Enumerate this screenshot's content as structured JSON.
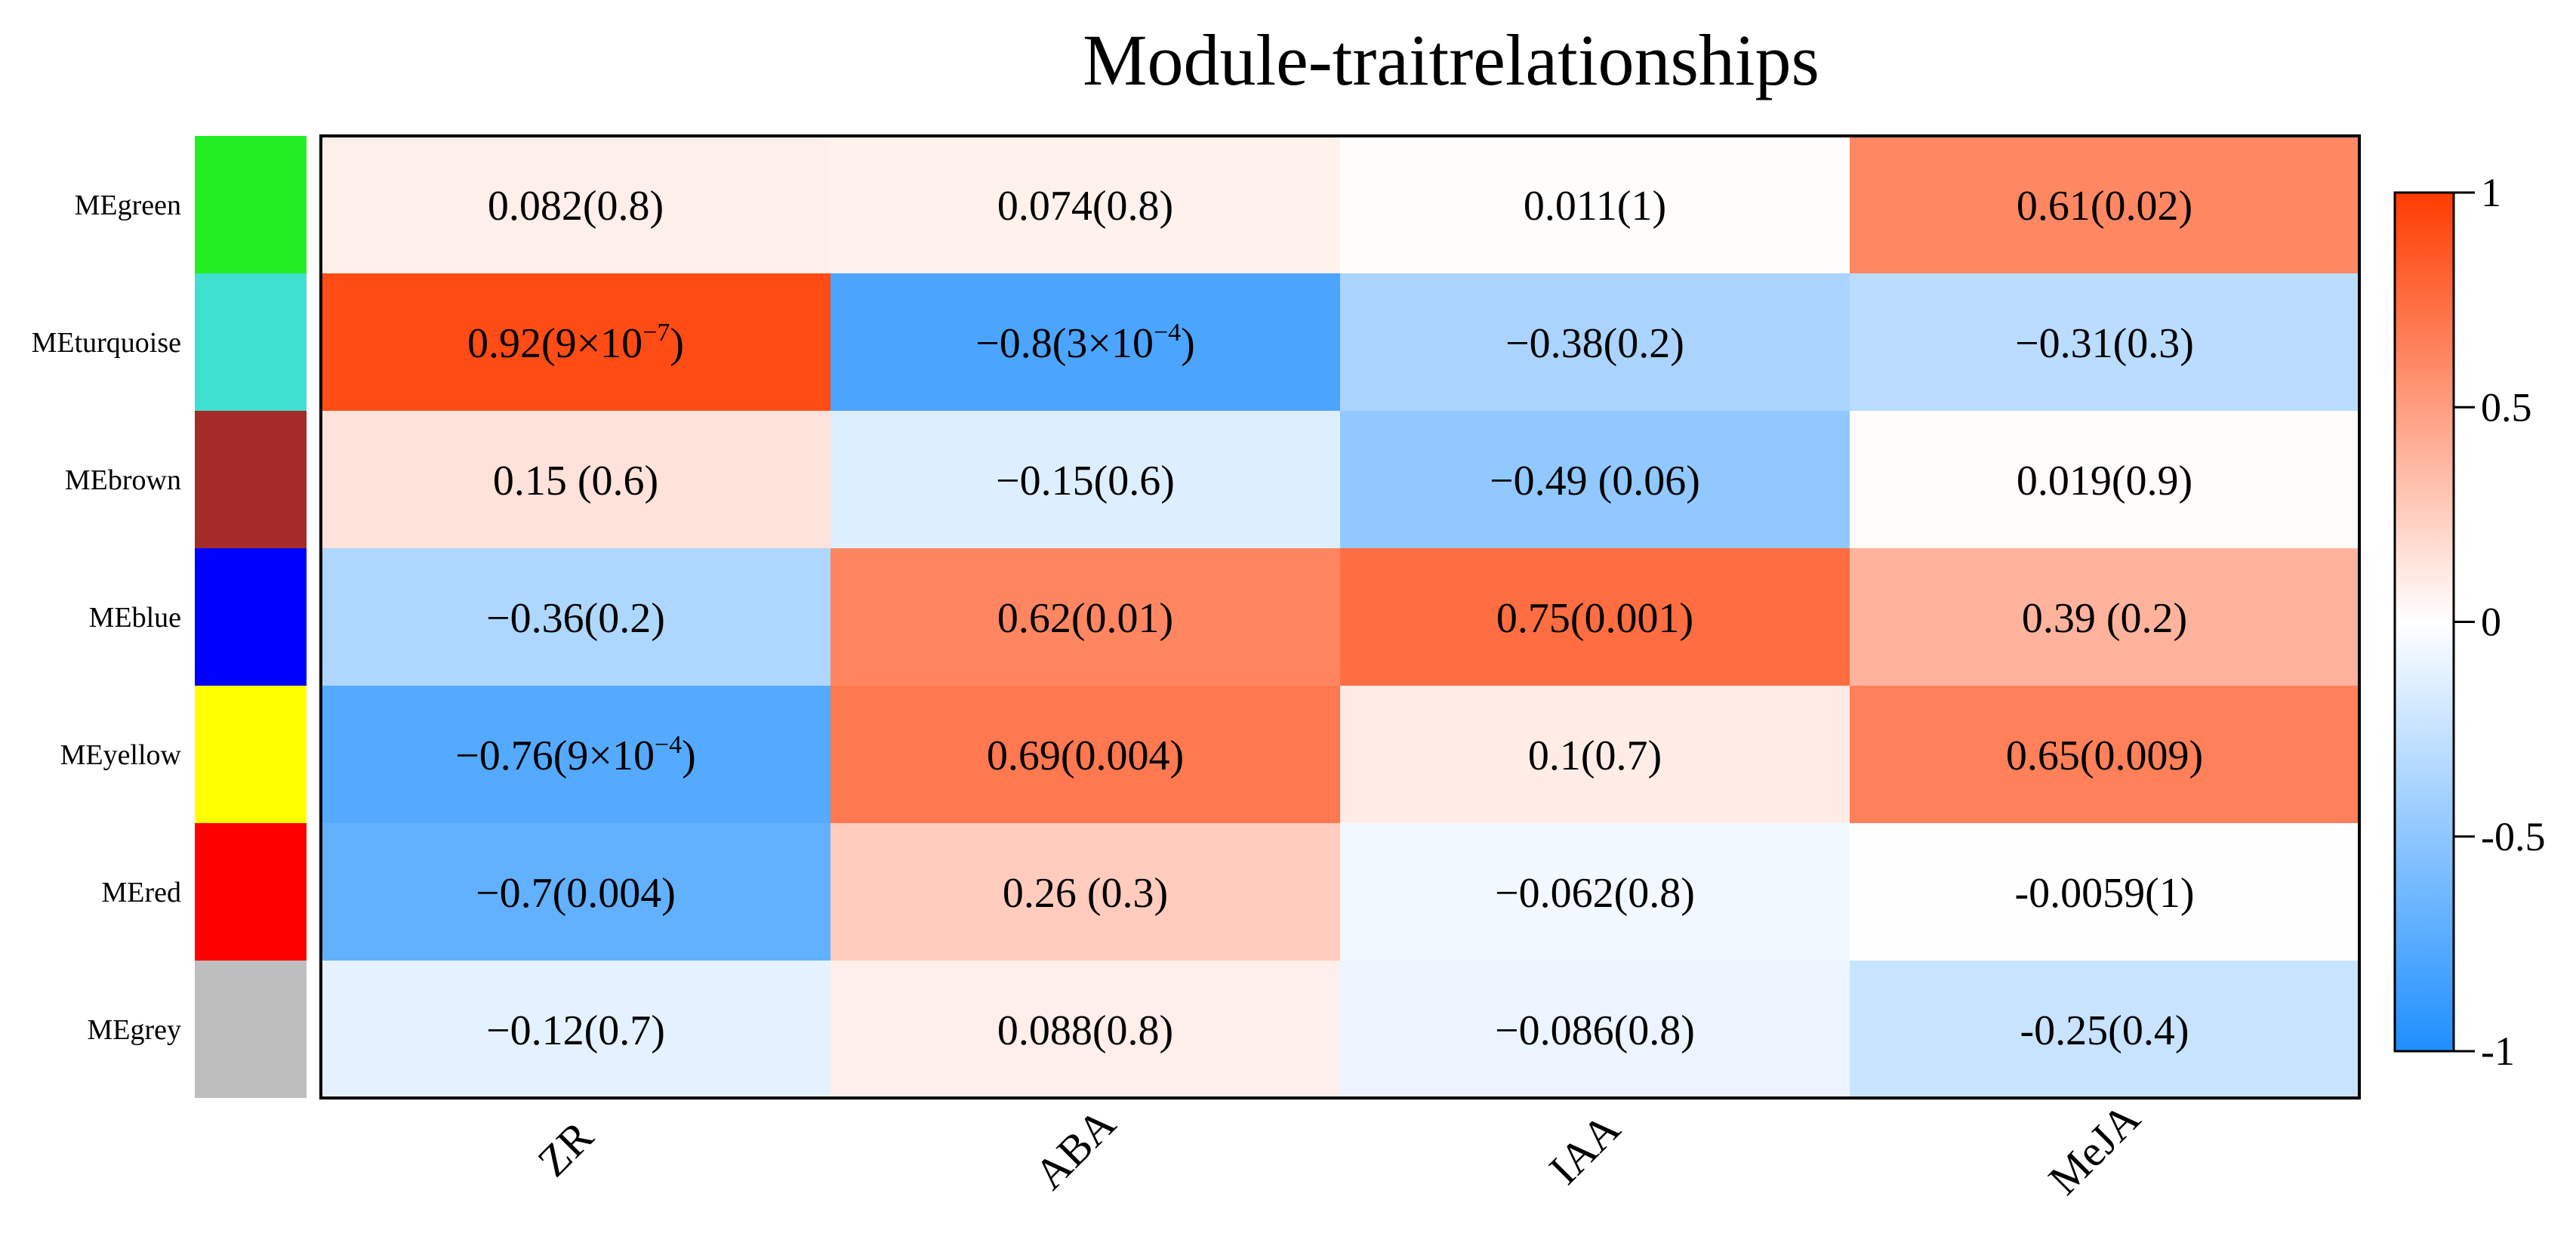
{
  "chart_data": {
    "type": "heatmap",
    "title": "Module-traitrelationships",
    "rows": [
      {
        "name": "MEgreen",
        "color": "#22ee22"
      },
      {
        "name": "MEturquoise",
        "color": "#40e0d0"
      },
      {
        "name": "MEbrown",
        "color": "#a52a2a"
      },
      {
        "name": "MEblue",
        "color": "#0000ff"
      },
      {
        "name": "MEyellow",
        "color": "#ffff00"
      },
      {
        "name": "MEred",
        "color": "#ff0000"
      },
      {
        "name": "MEgrey",
        "color": "#bebebe"
      }
    ],
    "columns": [
      "ZR",
      "ABA",
      "IAA",
      "MeJA"
    ],
    "values": [
      [
        0.082,
        0.074,
        0.011,
        0.61
      ],
      [
        0.92,
        -0.8,
        -0.38,
        -0.31
      ],
      [
        0.15,
        -0.15,
        -0.49,
        0.019
      ],
      [
        -0.36,
        0.62,
        0.75,
        0.39
      ],
      [
        -0.76,
        0.69,
        0.1,
        0.65
      ],
      [
        -0.7,
        0.26,
        -0.062,
        -0.0059
      ],
      [
        -0.12,
        0.088,
        -0.086,
        -0.25
      ]
    ],
    "labels": [
      [
        "0.082(0.8)",
        "0.074(0.8)",
        "0.011(1)",
        "0.61(0.02)"
      ],
      [
        [
          {
            "t": "0.92(9×10"
          },
          {
            "t": "−7",
            "sup": true
          },
          {
            "t": ")"
          }
        ],
        [
          {
            "t": "−0.8(3×10"
          },
          {
            "t": "−4",
            "sup": true
          },
          {
            "t": ")"
          }
        ],
        "−0.38(0.2)",
        "−0.31(0.3)"
      ],
      [
        "0.15 (0.6)",
        "−0.15(0.6)",
        "−0.49 (0.06)",
        "0.019(0.9)"
      ],
      [
        "−0.36(0.2)",
        "0.62(0.01)",
        "0.75(0.001)",
        "0.39 (0.2)"
      ],
      [
        [
          {
            "t": "−0.76(9×10"
          },
          {
            "t": "−4",
            "sup": true
          },
          {
            "t": ")"
          }
        ],
        "0.69(0.004)",
        "0.1(0.7)",
        "0.65(0.009)"
      ],
      [
        "−0.7(0.004)",
        "0.26 (0.3)",
        "−0.062(0.8)",
        "-0.0059(1)"
      ],
      [
        "−0.12(0.7)",
        "0.088(0.8)",
        "−0.086(0.8)",
        "-0.25(0.4)"
      ]
    ],
    "colorscale": {
      "min": -1,
      "max": 1,
      "low_color": "#1e8fff",
      "mid_color": "#ffffff",
      "high_color": "#ff3c00",
      "ticks": [
        {
          "value": 1,
          "label": "1"
        },
        {
          "value": 0.5,
          "label": "0.5"
        },
        {
          "value": 0,
          "label": "0"
        },
        {
          "value": -0.5,
          "label": "-0.5"
        },
        {
          "value": -1,
          "label": "-1"
        }
      ]
    }
  }
}
